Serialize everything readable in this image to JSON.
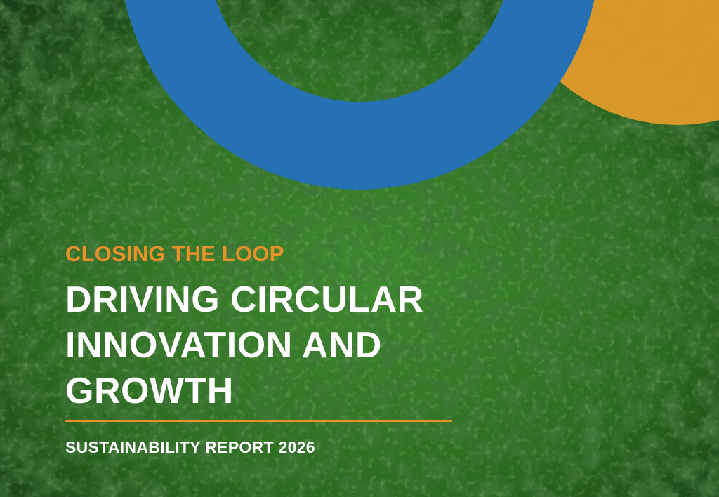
{
  "cover": {
    "kicker": "CLOSING THE LOOP",
    "title_lines": [
      "DRIVING CIRCULAR",
      "INNOVATION AND",
      "GROWTH"
    ],
    "subtitle": "SUSTAINABILITY REPORT 2026"
  }
}
